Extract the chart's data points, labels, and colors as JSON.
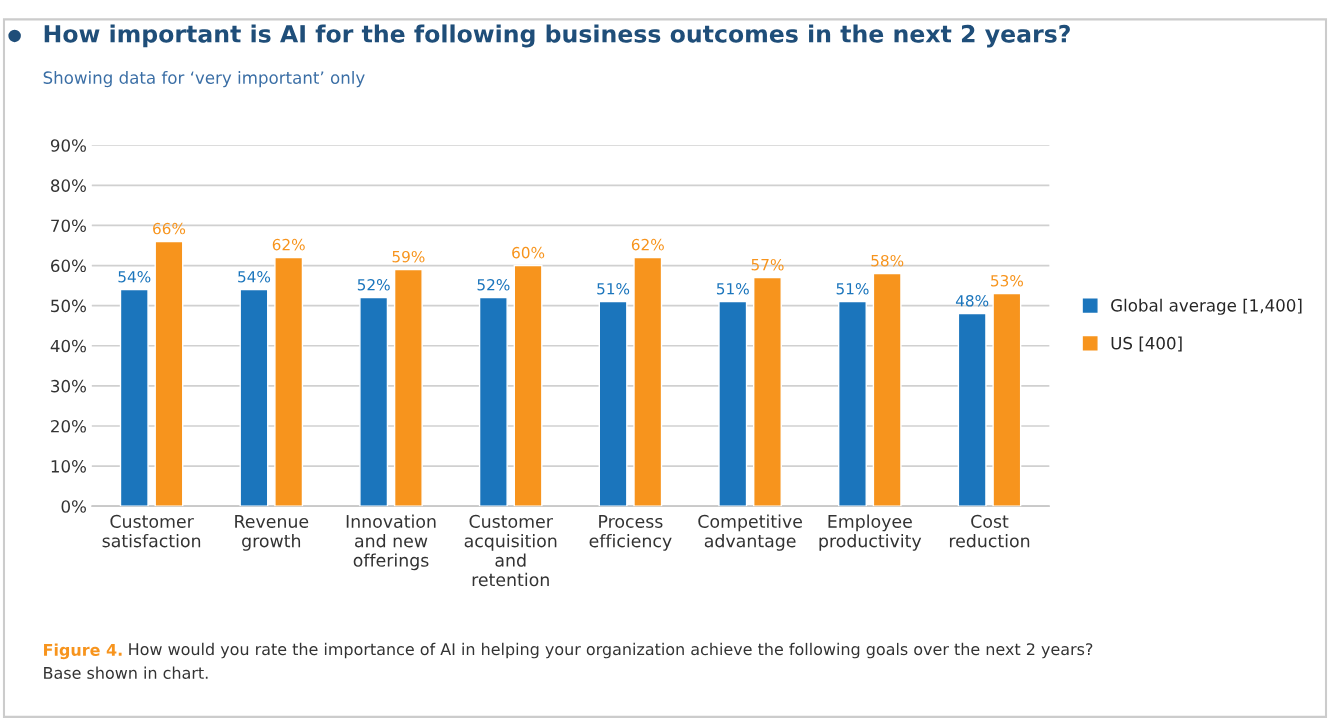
{
  "chart_data": {
    "type": "bar",
    "title": "How important is AI for the following business outcomes in the next 2 years?",
    "subtitle": "Showing data for ‘very important’ only",
    "categories": [
      "Customer\nsatisfaction",
      "Revenue\ngrowth",
      "Innovation\nand new\nofferings",
      "Customer\nacquisition\nand\nretention",
      "Process\nefficiency",
      "Competitive\nadvantage",
      "Employee\nproductivity",
      "Cost\nreduction"
    ],
    "series": [
      {
        "name": "Global average [1,400]",
        "color": "#1b75bc",
        "values": [
          54,
          54,
          52,
          52,
          51,
          51,
          51,
          48
        ],
        "value_labels": [
          "54%",
          "54%",
          "52%",
          "52%",
          "51%",
          "51%",
          "51%",
          "48%"
        ]
      },
      {
        "name": "US [400]",
        "color": "#f7941d",
        "values": [
          66,
          62,
          59,
          60,
          62,
          57,
          58,
          53
        ],
        "value_labels": [
          "66%",
          "62%",
          "59%",
          "60%",
          "62%",
          "57%",
          "58%",
          "53%"
        ]
      }
    ],
    "ylim": [
      0,
      90
    ],
    "yticks": [
      {
        "value": 0,
        "label": "0%"
      },
      {
        "value": 10,
        "label": "10%"
      },
      {
        "value": 20,
        "label": "20%"
      },
      {
        "value": 30,
        "label": "30%"
      },
      {
        "value": 40,
        "label": "40%"
      },
      {
        "value": 50,
        "label": "50%"
      },
      {
        "value": 60,
        "label": "60%"
      },
      {
        "value": 70,
        "label": "70%"
      },
      {
        "value": 80,
        "label": "80%"
      },
      {
        "value": 90,
        "label": "90%"
      }
    ],
    "grid": "y",
    "legend": "right",
    "annotations": [
      "Figure 4.",
      "How would you rate the importance of AI in helping your organization achieve the following goals over the next 2 years?\nBase shown in chart."
    ]
  }
}
